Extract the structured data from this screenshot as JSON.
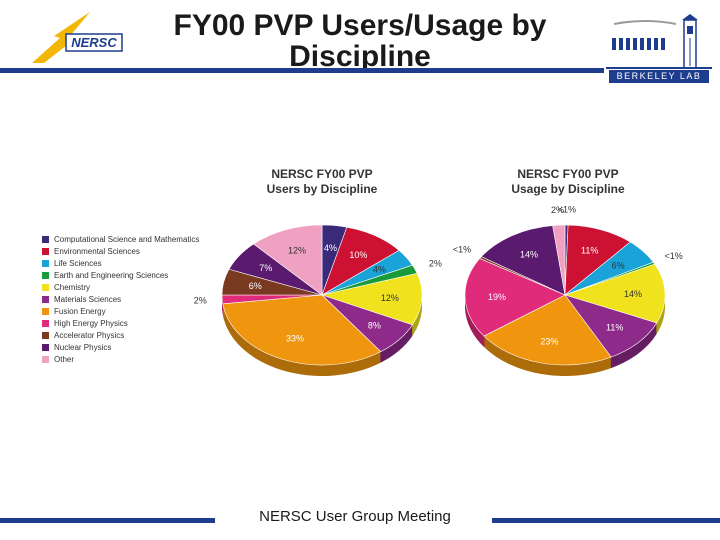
{
  "slide": {
    "title_line1": "FY00 PVP Users/Usage by",
    "title_line2": "Discipline",
    "footer": "NERSC User Group Meeting",
    "nersc_logo_text": "NERSC",
    "lbl_logo_text": "BERKELEY LAB"
  },
  "colors": {
    "rule": "#1f3d8f"
  },
  "legend": [
    {
      "label": "Computational Science and Mathematics",
      "color": "#3a2a7a"
    },
    {
      "label": "Environmental Sciences",
      "color": "#cc1133"
    },
    {
      "label": "Life Sciences",
      "color": "#1aa3d9"
    },
    {
      "label": "Earth and Engineering Sciences",
      "color": "#1a9a3a"
    },
    {
      "label": "Chemistry",
      "color": "#f0e21c"
    },
    {
      "label": "Materials Sciences",
      "color": "#8e2a8a"
    },
    {
      "label": "Fusion Energy",
      "color": "#f0960e"
    },
    {
      "label": "High Energy Physics",
      "color": "#e02a7a"
    },
    {
      "label": "Accelerator Physics",
      "color": "#7a3a22"
    },
    {
      "label": "Nuclear Physics",
      "color": "#5a1a6e"
    },
    {
      "label": "Other",
      "color": "#f0a0c0"
    }
  ],
  "chart_data": [
    {
      "type": "pie",
      "title_line1": "NERSC FY00 PVP",
      "title_line2": "Users by Discipline",
      "categories": [
        "Computational Science and Mathematics",
        "Environmental Sciences",
        "Life Sciences",
        "Earth and Engineering Sciences",
        "Chemistry",
        "Materials Sciences",
        "Fusion Energy",
        "High Energy Physics",
        "Accelerator Physics",
        "Nuclear Physics",
        "Other"
      ],
      "values": [
        4,
        10,
        4,
        2,
        12,
        8,
        33,
        2,
        6,
        7,
        12
      ],
      "labels": [
        "4%",
        "10%",
        "4%",
        "2%",
        "12%",
        "8%",
        "33%",
        "2%",
        "6%",
        "7%",
        "12%"
      ]
    },
    {
      "type": "pie",
      "title_line1": "NERSC FY00 PVP",
      "title_line2": "Usage by Discipline",
      "categories": [
        "Computational Science and Mathematics",
        "Environmental Sciences",
        "Life Sciences",
        "Earth and Engineering Sciences",
        "Chemistry",
        "Materials Sciences",
        "Fusion Energy",
        "High Energy Physics",
        "Accelerator Physics",
        "Nuclear Physics",
        "Other"
      ],
      "values": [
        0.5,
        11,
        6,
        0.5,
        14,
        11,
        23,
        19,
        0.5,
        14,
        2
      ],
      "labels": [
        "<1%",
        "11%",
        "6%",
        "<1%",
        "14%",
        "11%",
        "23%",
        "19%",
        "<1%",
        "14%",
        "2%"
      ]
    }
  ]
}
